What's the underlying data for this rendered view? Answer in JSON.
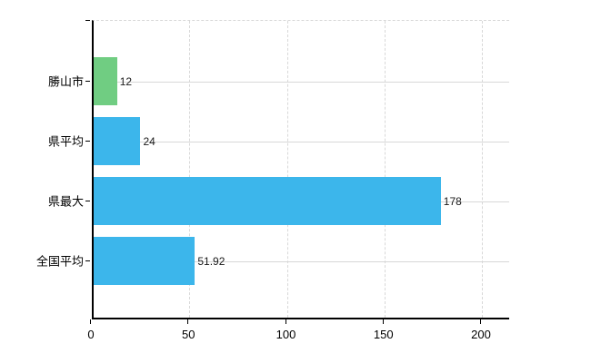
{
  "chart_data": {
    "type": "bar",
    "orientation": "horizontal",
    "title": "",
    "xlabel": "",
    "ylabel": "",
    "categories": [
      "勝山市",
      "県平均",
      "県最大",
      "全国平均"
    ],
    "values": [
      12,
      24,
      178,
      51.92
    ],
    "value_labels": [
      "12",
      "24",
      "178",
      "51.92"
    ],
    "bar_colors": [
      "#70cd82",
      "#3cb6eb",
      "#3cb6eb",
      "#3cb6eb"
    ],
    "xlim": [
      0,
      200
    ],
    "x_ticks": [
      0,
      50,
      100,
      150,
      200
    ],
    "x_tick_labels": [
      "0",
      "50",
      "100",
      "150",
      "200"
    ],
    "grid": true,
    "legend": false
  },
  "colors": {
    "green_bar": "#70cd82",
    "blue_bar": "#3cb6eb",
    "axis": "#000000",
    "gridline": "#d8d8d8",
    "value_text": "#1a1a1a",
    "label_text": "#000000",
    "background": "#ffffff"
  }
}
